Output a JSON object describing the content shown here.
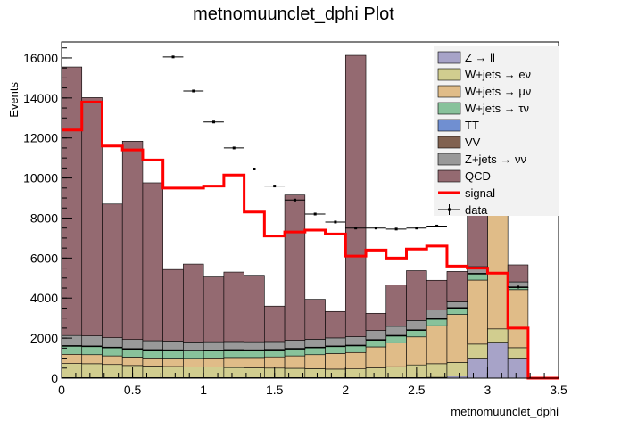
{
  "chart_data": {
    "type": "bar",
    "title": "metnomuunclet_dphi Plot",
    "xlabel": "metnomuunclet_dphi",
    "ylabel": "Events",
    "xlim": [
      0,
      3.5
    ],
    "ylim": [
      0,
      16800
    ],
    "x_ticks": [
      "0",
      "0.5",
      "1",
      "1.5",
      "2",
      "2.5",
      "3",
      "3.5"
    ],
    "y_ticks": [
      "0",
      "2000",
      "4000",
      "6000",
      "8000",
      "10000",
      "12000",
      "14000",
      "16000"
    ],
    "bin_edges": [
      0,
      0.1429,
      0.2857,
      0.4286,
      0.5714,
      0.7143,
      0.8571,
      1.0,
      1.1429,
      1.2857,
      1.4286,
      1.5714,
      1.7143,
      1.8571,
      2.0,
      2.1429,
      2.2857,
      2.4286,
      2.5714,
      2.7143,
      2.8571,
      3.0,
      3.1429,
      3.2857,
      3.4286,
      3.5
    ],
    "stack_order_note_hidden": "",
    "series": [
      {
        "name": "Z → ll",
        "color": "#a7a3c8",
        "values": [
          30,
          30,
          30,
          30,
          30,
          30,
          30,
          30,
          30,
          30,
          30,
          30,
          30,
          30,
          30,
          30,
          30,
          30,
          40,
          100,
          1000,
          1800,
          1000,
          0,
          0
        ]
      },
      {
        "name": "W+jets → eν",
        "color": "#d1cd8f",
        "values": [
          700,
          690,
          650,
          600,
          570,
          550,
          530,
          520,
          500,
          480,
          470,
          460,
          440,
          420,
          430,
          480,
          540,
          630,
          680,
          680,
          700,
          660,
          520,
          0,
          0
        ]
      },
      {
        "name": "W+jets → μν",
        "color": "#e0bc88",
        "values": [
          460,
          450,
          430,
          420,
          410,
          420,
          430,
          460,
          500,
          520,
          560,
          620,
          700,
          780,
          820,
          1050,
          1200,
          1400,
          1900,
          2400,
          3200,
          5700,
          2900,
          0,
          0
        ]
      },
      {
        "name": "W+jets → τν",
        "color": "#88c29b",
        "values": [
          400,
          400,
          400,
          390,
          380,
          380,
          370,
          360,
          360,
          350,
          340,
          340,
          340,
          340,
          330,
          330,
          330,
          320,
          320,
          310,
          300,
          200,
          100,
          0,
          0
        ]
      },
      {
        "name": "TT",
        "color": "#708fd1",
        "values": [
          20,
          20,
          20,
          20,
          20,
          20,
          20,
          20,
          20,
          20,
          20,
          20,
          20,
          20,
          20,
          20,
          20,
          20,
          20,
          20,
          20,
          10,
          10,
          0,
          0
        ]
      },
      {
        "name": "VV",
        "color": "#80614f",
        "values": [
          20,
          20,
          20,
          20,
          20,
          20,
          20,
          20,
          20,
          20,
          20,
          20,
          20,
          20,
          20,
          20,
          20,
          20,
          20,
          20,
          20,
          10,
          10,
          0,
          0
        ]
      },
      {
        "name": "Z+jets → νν",
        "color": "#999999",
        "values": [
          500,
          500,
          470,
          450,
          440,
          430,
          410,
          410,
          400,
          400,
          390,
          400,
          390,
          400,
          420,
          450,
          450,
          460,
          420,
          280,
          330,
          220,
          270,
          0,
          0
        ]
      },
      {
        "name": "QCD",
        "color": "#946a71",
        "values": [
          13420,
          11910,
          6680,
          9910,
          7890,
          3580,
          3890,
          3280,
          3470,
          3320,
          1770,
          7260,
          2000,
          1320,
          14060,
          860,
          2060,
          2490,
          1490,
          1520,
          2980,
          2300,
          850,
          0,
          0
        ]
      }
    ],
    "signal": {
      "name": "signal",
      "color": "#ff0000",
      "values": [
        12400,
        13800,
        11600,
        11400,
        10900,
        9500,
        9500,
        9600,
        10150,
        8300,
        7100,
        7300,
        7400,
        7200,
        6100,
        6400,
        6000,
        6450,
        6600,
        5600,
        5500,
        5250,
        2500,
        0,
        0
      ]
    },
    "data_points": {
      "name": "data",
      "values": [
        null,
        null,
        null,
        null,
        null,
        16050,
        14350,
        12800,
        11500,
        10450,
        9600,
        8900,
        8200,
        7800,
        7500,
        7500,
        7450,
        7500,
        7600,
        8250,
        8500,
        null,
        4550,
        null,
        null
      ]
    }
  }
}
